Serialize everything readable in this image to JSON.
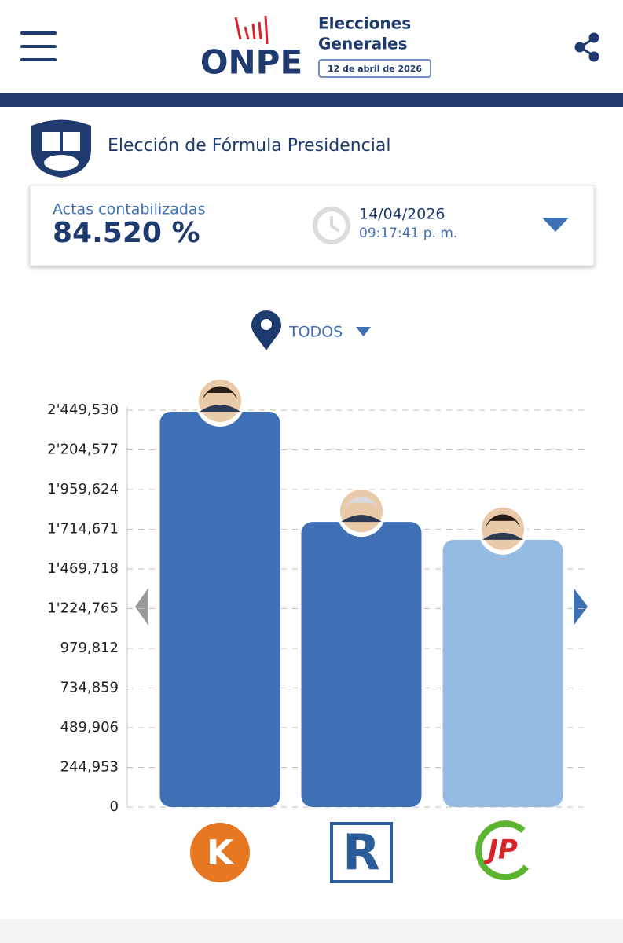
{
  "header": {
    "brand": "ONPE",
    "event": [
      "Elecciones",
      "Generales"
    ],
    "date": "12 de abril de 2026"
  },
  "section_title": "Elección de Fórmula Presidencial",
  "summary": {
    "label": "Actas contabilizadas",
    "percent": "84.520 %",
    "date": "14/04/2026",
    "time": "09:17:41 p. m."
  },
  "filter": "TODOS",
  "chart_data": {
    "type": "bar",
    "categories": [
      null,
      null,
      null
    ],
    "values": [
      2440000,
      1760000,
      1650000
    ],
    "colors": [
      "#3f6fb5",
      "#3f6fb5",
      "#94bce2"
    ],
    "party_logos": [
      "K",
      "R",
      "JP"
    ],
    "ylim": [
      0,
      2449530
    ],
    "yticks": [
      0,
      {
        "value": 244953,
        "label": "244,953"
      },
      {
        "value": 489906,
        "label": "489,906"
      },
      {
        "value": 734859,
        "label": "734,859"
      },
      {
        "value": 979812,
        "label": "979,812"
      },
      {
        "value": 1224765,
        "label": "1'224,765"
      },
      {
        "value": 1469718,
        "label": "1'469,718"
      },
      {
        "value": 1714671,
        "label": "1'714,671"
      },
      {
        "value": 1959624,
        "label": "1'959,624"
      },
      {
        "value": 2204577,
        "label": "2'204,577"
      },
      {
        "value": 2449530,
        "label": "2'449,530"
      }
    ],
    "grid": true
  }
}
